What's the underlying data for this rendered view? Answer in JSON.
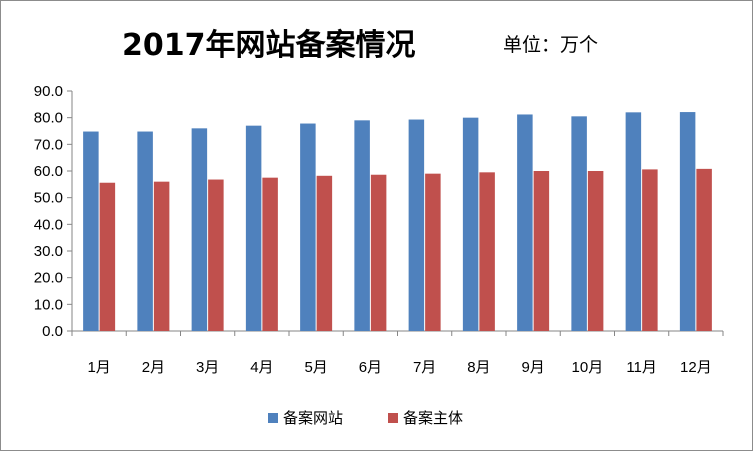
{
  "chart_data": {
    "type": "bar",
    "title": "2017年网站备案情况",
    "unit_label": "单位：万个",
    "categories": [
      "1月",
      "2月",
      "3月",
      "4月",
      "5月",
      "6月",
      "7月",
      "8月",
      "9月",
      "10月",
      "11月",
      "12月"
    ],
    "series": [
      {
        "name": "备案网站",
        "color": "#4f81bd",
        "values": [
          74.8,
          74.8,
          76.0,
          77.0,
          77.8,
          79.0,
          79.3,
          80.0,
          81.2,
          80.5,
          82.0,
          82.1
        ]
      },
      {
        "name": "备案主体",
        "color": "#c0504d",
        "values": [
          55.6,
          56.0,
          56.8,
          57.5,
          58.2,
          58.6,
          59.0,
          59.5,
          60.0,
          60.0,
          60.6,
          60.8
        ]
      }
    ],
    "y_ticks": [
      "0.0",
      "10.0",
      "20.0",
      "30.0",
      "40.0",
      "50.0",
      "60.0",
      "70.0",
      "80.0",
      "90.0"
    ],
    "ylim": [
      0,
      90
    ],
    "grid": false,
    "legend_position": "bottom"
  }
}
